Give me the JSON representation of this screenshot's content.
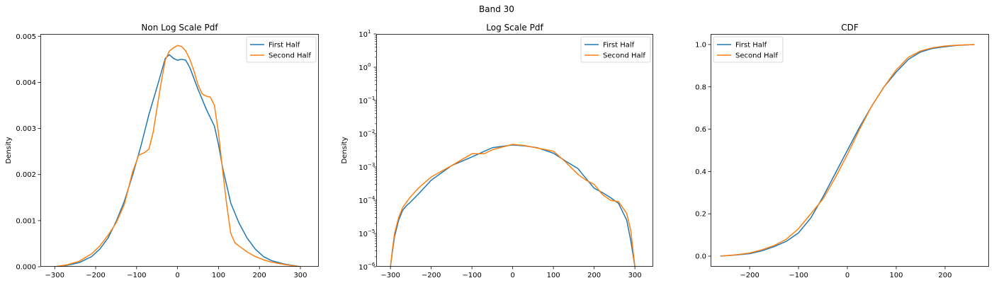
{
  "figure": {
    "suptitle": "Band 30"
  },
  "colors": {
    "first": "#1f77b4",
    "second": "#ff7f0e"
  },
  "chart_data": [
    {
      "type": "line",
      "title": "Non Log Scale Pdf",
      "xlabel": "",
      "ylabel": "Density",
      "xlim": [
        -335,
        345
      ],
      "ylim": [
        0,
        0.00505
      ],
      "yscale": "linear",
      "xticks": [
        -300,
        -200,
        -100,
        0,
        100,
        200,
        300
      ],
      "xtick_labels": [
        "−300",
        "−200",
        "−100",
        "0",
        "100",
        "200",
        "300"
      ],
      "yticks": [
        0,
        0.001,
        0.002,
        0.003,
        0.004,
        0.005
      ],
      "ytick_labels": [
        "0.000",
        "0.001",
        "0.002",
        "0.003",
        "0.004",
        "0.005"
      ],
      "legend": {
        "position": "upper right",
        "entries": [
          "First Half",
          "Second Half"
        ]
      },
      "grid": false,
      "series": [
        {
          "name": "First Half",
          "color": "#1f77b4",
          "x": [
            -300,
            -270,
            -240,
            -210,
            -190,
            -170,
            -150,
            -130,
            -110,
            -90,
            -70,
            -50,
            -30,
            -20,
            -10,
            0,
            10,
            20,
            30,
            50,
            70,
            90,
            100,
            110,
            130,
            150,
            170,
            190,
            210,
            230,
            260,
            300
          ],
          "y": [
            0,
            3e-05,
            9e-05,
            0.00022,
            0.00038,
            0.00062,
            0.00098,
            0.00142,
            0.00198,
            0.0026,
            0.0033,
            0.0039,
            0.00452,
            0.0046,
            0.00452,
            0.00448,
            0.0045,
            0.00448,
            0.00432,
            0.00385,
            0.00342,
            0.00305,
            0.00265,
            0.00215,
            0.00138,
            0.00095,
            0.00062,
            0.00038,
            0.00022,
            0.00013,
            6e-05,
            0
          ]
        },
        {
          "name": "Second Half",
          "color": "#ff7f0e",
          "x": [
            -300,
            -270,
            -240,
            -210,
            -190,
            -170,
            -150,
            -130,
            -110,
            -95,
            -80,
            -70,
            -60,
            -50,
            -40,
            -30,
            -20,
            -10,
            0,
            10,
            20,
            30,
            40,
            50,
            60,
            70,
            80,
            90,
            100,
            110,
            120,
            130,
            140,
            150,
            170,
            190,
            210,
            230,
            260,
            300
          ],
          "y": [
            0,
            4e-05,
            0.00012,
            0.00028,
            0.00045,
            0.00068,
            0.00095,
            0.00135,
            0.00205,
            0.00242,
            0.00248,
            0.00255,
            0.0029,
            0.00345,
            0.004,
            0.00448,
            0.00468,
            0.00475,
            0.0048,
            0.00478,
            0.00468,
            0.0045,
            0.00425,
            0.00395,
            0.00375,
            0.0037,
            0.00368,
            0.0035,
            0.0029,
            0.0021,
            0.00135,
            0.00072,
            0.00052,
            0.00045,
            0.00032,
            0.00022,
            0.00015,
            0.0001,
            5e-05,
            0
          ]
        }
      ]
    },
    {
      "type": "line",
      "title": "Log Scale Pdf",
      "xlabel": "",
      "ylabel": "Density",
      "xlim": [
        -335,
        345
      ],
      "ylim": [
        1e-06,
        10
      ],
      "yscale": "log",
      "xticks": [
        -300,
        -200,
        -100,
        0,
        100,
        200,
        300
      ],
      "xtick_labels": [
        "−300",
        "−200",
        "−100",
        "0",
        "100",
        "200",
        "300"
      ],
      "yticks": [
        1e-06,
        1e-05,
        0.0001,
        0.001,
        0.01,
        0.1,
        1,
        10
      ],
      "ytick_bases": [
        "10",
        "10",
        "10",
        "10",
        "10",
        "10",
        "10",
        "10"
      ],
      "ytick_exponents": [
        "−6",
        "−5",
        "−4",
        "−3",
        "−2",
        "−1",
        "0",
        "1"
      ],
      "legend": {
        "position": "upper right",
        "entries": [
          "First Half",
          "Second Half"
        ]
      },
      "grid": false,
      "series": [
        {
          "name": "First Half",
          "color": "#1f77b4",
          "x": [
            -300,
            -295,
            -290,
            -280,
            -270,
            -260,
            -250,
            -230,
            -200,
            -150,
            -100,
            -50,
            0,
            30,
            60,
            100,
            130,
            160,
            180,
            200,
            220,
            240,
            260,
            280,
            290,
            300
          ],
          "y": [
            1e-06,
            3e-06,
            8e-06,
            2.5e-05,
            5e-05,
            7e-05,
            9e-05,
            0.00016,
            0.0004,
            0.0011,
            0.002,
            0.0038,
            0.0046,
            0.0043,
            0.0038,
            0.0026,
            0.0015,
            0.0009,
            0.00045,
            0.00023,
            0.00017,
            0.00012,
            8e-05,
            2.5e-05,
            6e-06,
            1e-06
          ]
        },
        {
          "name": "Second Half",
          "color": "#ff7f0e",
          "x": [
            -300,
            -295,
            -290,
            -280,
            -270,
            -260,
            -250,
            -230,
            -200,
            -150,
            -100,
            -70,
            -50,
            0,
            30,
            60,
            100,
            130,
            160,
            180,
            200,
            220,
            240,
            260,
            280,
            290,
            300
          ],
          "y": [
            1e-06,
            3.5e-06,
            1e-05,
            3e-05,
            6e-05,
            9e-05,
            0.00013,
            0.00024,
            0.0005,
            0.0011,
            0.0025,
            0.0025,
            0.0033,
            0.0048,
            0.0044,
            0.0037,
            0.003,
            0.0014,
            0.0006,
            0.0004,
            0.0003,
            0.00015,
            0.0001,
            9e-05,
            4e-05,
            1.2e-05,
            1e-06
          ]
        }
      ]
    },
    {
      "type": "line",
      "title": "CDF",
      "xlabel": "",
      "ylabel": "",
      "xlim": [
        -280,
        290
      ],
      "ylim": [
        -0.05,
        1.05
      ],
      "yscale": "linear",
      "xticks": [
        -200,
        -100,
        0,
        100,
        200
      ],
      "xtick_labels": [
        "−200",
        "−100",
        "0",
        "100",
        "200"
      ],
      "yticks": [
        0,
        0.2,
        0.4,
        0.6,
        0.8,
        1.0
      ],
      "ytick_labels": [
        "0.0",
        "0.2",
        "0.4",
        "0.6",
        "0.8",
        "1.0"
      ],
      "legend": {
        "position": "upper left",
        "entries": [
          "First Half",
          "Second Half"
        ]
      },
      "grid": false,
      "series": [
        {
          "name": "First Half",
          "color": "#1f77b4",
          "x": [
            -260,
            -230,
            -200,
            -175,
            -150,
            -125,
            -100,
            -75,
            -50,
            -25,
            0,
            25,
            50,
            75,
            100,
            125,
            150,
            175,
            200,
            225,
            260
          ],
          "y": [
            0,
            0.005,
            0.012,
            0.025,
            0.045,
            0.07,
            0.11,
            0.18,
            0.28,
            0.39,
            0.5,
            0.61,
            0.71,
            0.8,
            0.87,
            0.93,
            0.965,
            0.982,
            0.99,
            0.996,
            1.0
          ]
        },
        {
          "name": "Second Half",
          "color": "#ff7f0e",
          "x": [
            -260,
            -230,
            -200,
            -175,
            -150,
            -125,
            -100,
            -75,
            -50,
            -25,
            0,
            25,
            50,
            75,
            100,
            125,
            150,
            175,
            200,
            225,
            260
          ],
          "y": [
            0,
            0.006,
            0.015,
            0.03,
            0.05,
            0.08,
            0.13,
            0.2,
            0.27,
            0.37,
            0.48,
            0.6,
            0.71,
            0.8,
            0.88,
            0.94,
            0.97,
            0.985,
            0.993,
            0.997,
            1.0
          ]
        }
      ]
    }
  ]
}
